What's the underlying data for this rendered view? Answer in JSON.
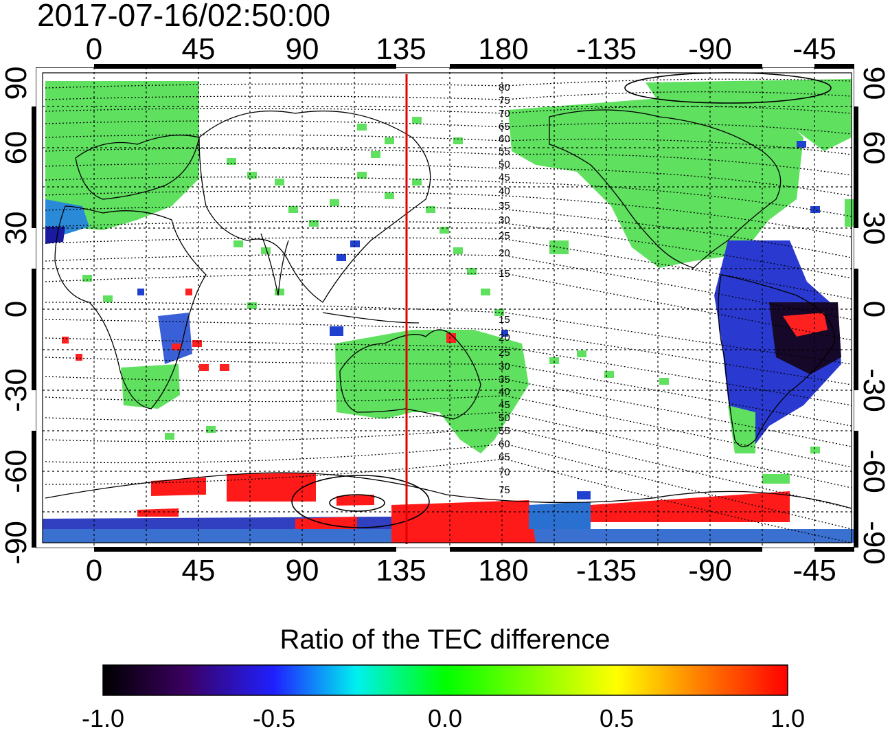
{
  "timestamp": "2017-07-16/02:50:00",
  "x_ticks": [
    "0",
    "45",
    "90",
    "135",
    "180",
    "-135",
    "-90",
    "-45"
  ],
  "y_ticks": [
    "90",
    "60",
    "30",
    "0",
    "-30",
    "-60",
    "-90"
  ],
  "contour_labels_north": [
    "80",
    "75",
    "70",
    "65",
    "60",
    "55",
    "50",
    "45",
    "40",
    "35",
    "30",
    "25",
    "20",
    "15"
  ],
  "contour_labels_south": [
    "15",
    "20",
    "25",
    "30",
    "35",
    "40",
    "45",
    "50",
    "55",
    "60",
    "65",
    "70",
    "75"
  ],
  "colorbar": {
    "title": "Ratio of the TEC difference",
    "tick_labels": [
      "-1.0",
      "-0.5",
      "0.0",
      "0.5",
      "1.0"
    ],
    "stops": [
      "#000000",
      "#3a0060",
      "#2020ff",
      "#00f0f0",
      "#00ff00",
      "#ffff00",
      "#ff8000",
      "#ff0000"
    ]
  },
  "colors": {
    "terminator_line": "#e00000",
    "land_data": "#5fe05f",
    "high_ratio": "#ff0000",
    "low_ratio": "#1a1aa0"
  }
}
